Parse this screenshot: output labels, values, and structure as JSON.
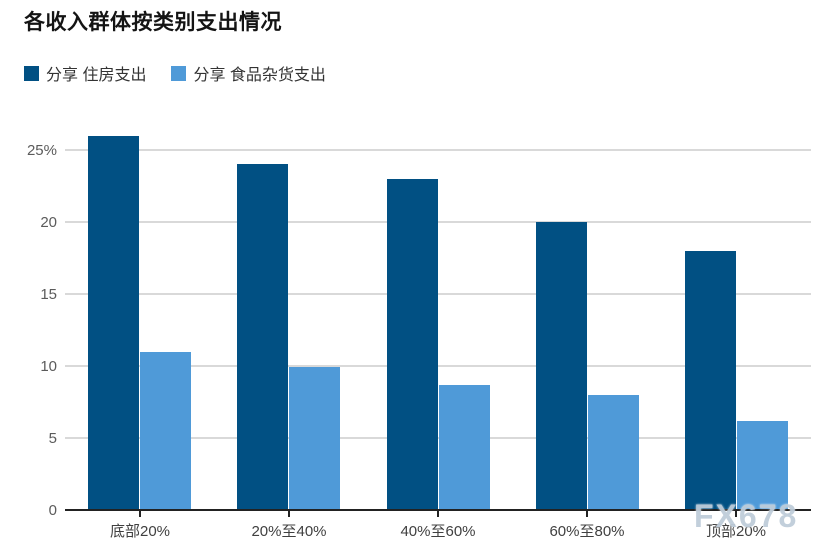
{
  "watermark": "FX678",
  "chart_data": {
    "type": "bar",
    "title": "各收入群体按类别支出情况",
    "categories": [
      "底部20%",
      "20%至40%",
      "40%至60%",
      "60%至80%",
      "顶部20%"
    ],
    "series": [
      {
        "name": "分享 住房支出",
        "color": "#015083",
        "values": [
          26,
          24,
          23,
          20,
          18
        ]
      },
      {
        "name": "分享 食品杂货支出",
        "color": "#4f9ad8",
        "values": [
          11,
          9.9,
          8.7,
          8,
          6.2
        ]
      }
    ],
    "xlabel": "",
    "ylabel": "",
    "ylim": [
      0,
      26.5
    ],
    "yticks": [
      {
        "value": 25,
        "label": "25%"
      },
      {
        "value": 20,
        "label": "20"
      },
      {
        "value": 15,
        "label": "15"
      },
      {
        "value": 10,
        "label": "10"
      },
      {
        "value": 5,
        "label": "5"
      },
      {
        "value": 0,
        "label": "0"
      }
    ],
    "grid": true,
    "legend_position": "top-left",
    "gridline_color": "#d9d9d9",
    "axis_color": "#222222"
  }
}
